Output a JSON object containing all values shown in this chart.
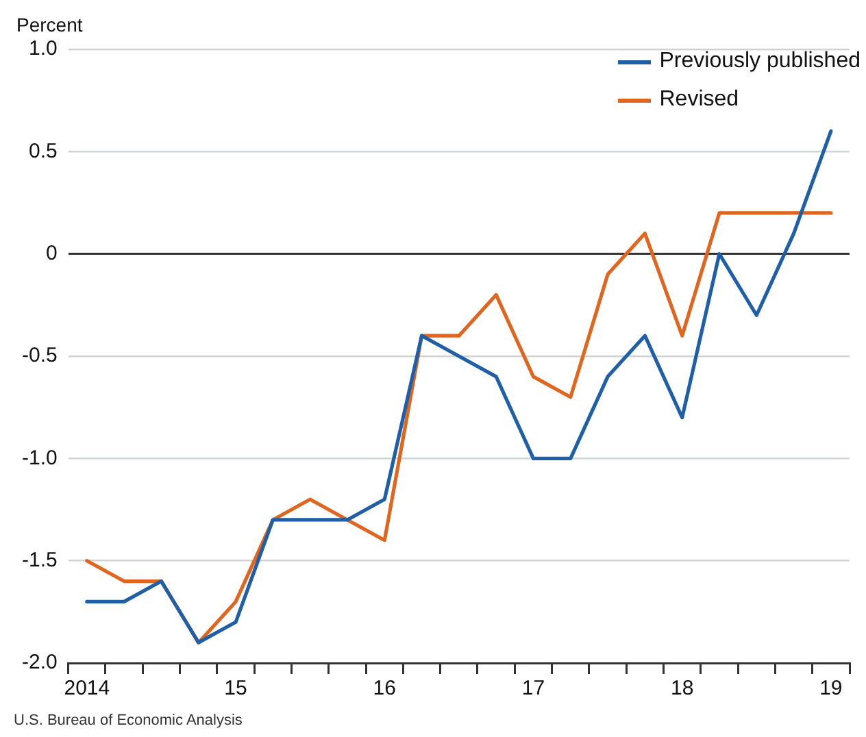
{
  "chart_data": {
    "type": "line",
    "ylabel": "Percent",
    "categories": [
      "2014",
      null,
      null,
      null,
      "15",
      null,
      null,
      null,
      "16",
      null,
      null,
      null,
      "17",
      null,
      null,
      null,
      "18",
      null,
      null,
      null,
      "19"
    ],
    "series": [
      {
        "name": "Previously published",
        "color": "#1f5fa8",
        "values": [
          -1.7,
          -1.7,
          -1.6,
          -1.9,
          -1.8,
          -1.3,
          -1.3,
          -1.3,
          -1.2,
          -0.4,
          -0.5,
          -0.6,
          -1.0,
          -1.0,
          -0.6,
          -0.4,
          -0.8,
          0.0,
          -0.3,
          0.1,
          0.6
        ]
      },
      {
        "name": "Revised",
        "color": "#e0651f",
        "values": [
          -1.5,
          -1.6,
          -1.6,
          -1.9,
          -1.7,
          -1.3,
          -1.2,
          -1.3,
          -1.4,
          -0.4,
          -0.4,
          -0.2,
          -0.6,
          -0.7,
          -0.1,
          0.1,
          -0.4,
          0.2,
          0.2,
          0.2,
          0.2
        ]
      }
    ],
    "ylim": [
      -2.0,
      1.0
    ],
    "yticks": [
      {
        "value": -2.0,
        "label": "-2.0"
      },
      {
        "value": -1.5,
        "label": "-1.5"
      },
      {
        "value": -1.0,
        "label": "-1.0"
      },
      {
        "value": -0.5,
        "label": "-0.5"
      },
      0,
      {
        "value": 0.5,
        "label": "0.5"
      },
      {
        "value": 1.0,
        "label": "1.0"
      }
    ],
    "grid": "y",
    "legend": "top right",
    "marker": "none",
    "line_style": "solid",
    "annotations": [
      "U.S. Bureau of Economic Analysis"
    ]
  }
}
